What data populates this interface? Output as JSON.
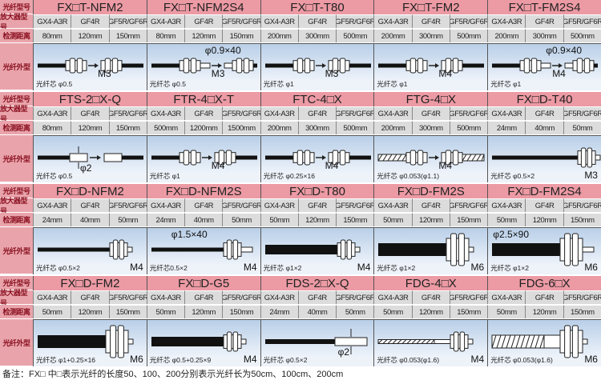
{
  "row_labels": {
    "fiber_model": "光纤型号",
    "amplifier_model": "放大器型号",
    "detect_distance": "检测距离",
    "fiber_shape": "光纤外型"
  },
  "colors": {
    "header": "#ec9aa4",
    "label": "#e9a4ab",
    "label_text": "#8a1020",
    "cell": "#dcdcdc",
    "picture": "#b9cfe8"
  },
  "blocks": [
    {
      "products": [
        {
          "name": "FX□T-NFM2",
          "amps": [
            "GX4-A3R",
            "GF4R",
            "GF5R/GF6R"
          ],
          "distances": [
            "80mm",
            "120mm",
            "150mm"
          ],
          "core": "光纤芯 φ0.5",
          "thread": "M3",
          "dim": "",
          "shape": "pair"
        },
        {
          "name": "FX□T-NFM2S4",
          "amps": [
            "GX4-A3R",
            "GF4R",
            "GF5R/GF6R"
          ],
          "distances": [
            "80mm",
            "120mm",
            "150mm"
          ],
          "core": "光纤芯 φ0.5",
          "thread": "M3",
          "dim": "φ0.9×40",
          "shape": "pair-sleeve"
        },
        {
          "name": "FX□T-T80",
          "amps": [
            "GX4-A3R",
            "GF4R",
            "GF5R/GF6R"
          ],
          "distances": [
            "200mm",
            "300mm",
            "500mm"
          ],
          "core": "光纤芯 φ1",
          "thread": "M3",
          "dim": "",
          "shape": "pair"
        },
        {
          "name": "FX□T-FM2",
          "amps": [
            "GX4-A3R",
            "GF4R",
            "GF5R/GF6R"
          ],
          "distances": [
            "200mm",
            "300mm",
            "500mm"
          ],
          "core": "光纤芯 φ1",
          "thread": "M4",
          "dim": "",
          "shape": "pair"
        },
        {
          "name": "FX□T-FM2S4",
          "amps": [
            "GX4-A3R",
            "GF4R",
            "GF5R/GF6R"
          ],
          "distances": [
            "200mm",
            "300mm",
            "500mm"
          ],
          "core": "光纤芯 φ1",
          "thread": "M4",
          "dim": "φ0.9×40",
          "shape": "pair-sleeve"
        }
      ]
    },
    {
      "products": [
        {
          "name": "FTS-2□X-Q",
          "amps": [
            "GX4-A3R",
            "GF4R",
            "GF5R/GF6R"
          ],
          "distances": [
            "80mm",
            "120mm",
            "150mm"
          ],
          "core": "光纤芯 φ0.5",
          "thread": "",
          "dim": "φ2",
          "shape": "pair-probe"
        },
        {
          "name": "FTR-4□X-T",
          "amps": [
            "GX4-A3R",
            "GF4R",
            "GF5R/GF6R"
          ],
          "distances": [
            "500mm",
            "1200mm",
            "1500mm"
          ],
          "core": "光纤芯 φ1",
          "thread": "M4",
          "dim": "",
          "shape": "pair"
        },
        {
          "name": "FTC-4□X",
          "amps": [
            "GX4-A3R",
            "GF4R",
            "GF5R/GF6R"
          ],
          "distances": [
            "200mm",
            "300mm",
            "500mm"
          ],
          "core": "光纤芯 φ0.25×16",
          "thread": "M4",
          "dim": "",
          "shape": "pair"
        },
        {
          "name": "FTG-4□X",
          "amps": [
            "GX4-A3R",
            "GF4R",
            "GF5R/GF6R"
          ],
          "distances": [
            "200mm",
            "300mm",
            "500mm"
          ],
          "core": "光纤芯 φ0.053(φ1.1)",
          "thread": "M4",
          "dim": "",
          "shape": "pair-hatch"
        },
        {
          "name": "FX□D-T40",
          "amps": [
            "GX4-A3R",
            "GF4R",
            "GF5R/GF6R"
          ],
          "distances": [
            "24mm",
            "40mm",
            "50mm"
          ],
          "core": "光纤芯 φ0.5×2",
          "thread": "M3",
          "dim": "",
          "shape": "single-long"
        }
      ]
    },
    {
      "products": [
        {
          "name": "FX□D-NFM2",
          "amps": [
            "GX4-A3R",
            "GF4R",
            "GF5R/GF6R"
          ],
          "distances": [
            "24mm",
            "40mm",
            "50mm"
          ],
          "core": "光纤芯 φ0.5×2",
          "thread": "M4",
          "dim": "",
          "shape": "single"
        },
        {
          "name": "FX□D-NFM2S",
          "amps": [
            "GX4-A3R",
            "GF4R",
            "GF5R/GF6R"
          ],
          "distances": [
            "24mm",
            "40mm",
            "50mm"
          ],
          "core": "光纤芯0.5×2",
          "thread": "M4",
          "dim": "φ1.5×40",
          "shape": "single-sleeve"
        },
        {
          "name": "FX□D-T80",
          "amps": [
            "GX4-A3R",
            "GF4R",
            "GF5R/GF6R"
          ],
          "distances": [
            "50mm",
            "120mm",
            "150mm"
          ],
          "core": "光纤芯 φ1×2",
          "thread": "M4",
          "dim": "",
          "shape": "single-thick"
        },
        {
          "name": "FX□D-FM2S",
          "amps": [
            "GX4-A3R",
            "GF4R",
            "GF5R/GF6R"
          ],
          "distances": [
            "50mm",
            "120mm",
            "150mm"
          ],
          "core": "光纤芯 φ1×2",
          "thread": "M6",
          "dim": "",
          "shape": "single-big"
        },
        {
          "name": "FX□D-FM2S4",
          "amps": [
            "GX4-A3R",
            "GF4R",
            "GF5R/GF6R"
          ],
          "distances": [
            "50mm",
            "120mm",
            "150mm"
          ],
          "core": "光纤芯 φ1×2",
          "thread": "M6",
          "dim": "φ2.5×90",
          "shape": "single-big-sleeve"
        }
      ]
    },
    {
      "products": [
        {
          "name": "FX□D-FM2",
          "amps": [
            "GX4-A3R",
            "GF4R",
            "GF5R/GF6R"
          ],
          "distances": [
            "50mm",
            "120mm",
            "150mm"
          ],
          "core": "光纤芯 φ1+0.25×16",
          "thread": "M6",
          "dim": "",
          "shape": "single-big-thick"
        },
        {
          "name": "FX□D-G5",
          "amps": [
            "GX4-A3R",
            "GF4R",
            "GF5R/GF6R"
          ],
          "distances": [
            "50mm",
            "120mm",
            "150mm"
          ],
          "core": "光纤芯 φ0.5+0.25×9",
          "thread": "M4",
          "dim": "",
          "shape": "single-thick"
        },
        {
          "name": "FDS-2□X-Q",
          "amps": [
            "GX4-A3R",
            "GF4R",
            "GF5R/GF6R"
          ],
          "distances": [
            "24mm",
            "40mm",
            "50mm"
          ],
          "core": "光纤芯 φ0.5×2",
          "thread": "",
          "dim": "φ2",
          "shape": "probe"
        },
        {
          "name": "FDG-4□X",
          "amps": [
            "GX4-A3R",
            "GF4R",
            "GF5R/GF6R"
          ],
          "distances": [
            "50mm",
            "120mm",
            "150mm"
          ],
          "core": "光纤芯 φ0.053(φ1.6)",
          "thread": "M4",
          "dim": "",
          "shape": "single-hatch"
        },
        {
          "name": "FDG-6□X",
          "amps": [
            "GX4-A3R",
            "GF4R",
            "GF5R/GF6R"
          ],
          "distances": [
            "50mm",
            "120mm",
            "150mm"
          ],
          "core": "光纤芯 φ0.053(φ1.6)",
          "thread": "M6",
          "dim": "",
          "shape": "single-big-hatch"
        }
      ]
    }
  ],
  "footer_note": "备注：FX□ 中□表示光纤的长度50、100、200分别表示光纤长为50cm、100cm、200cm"
}
